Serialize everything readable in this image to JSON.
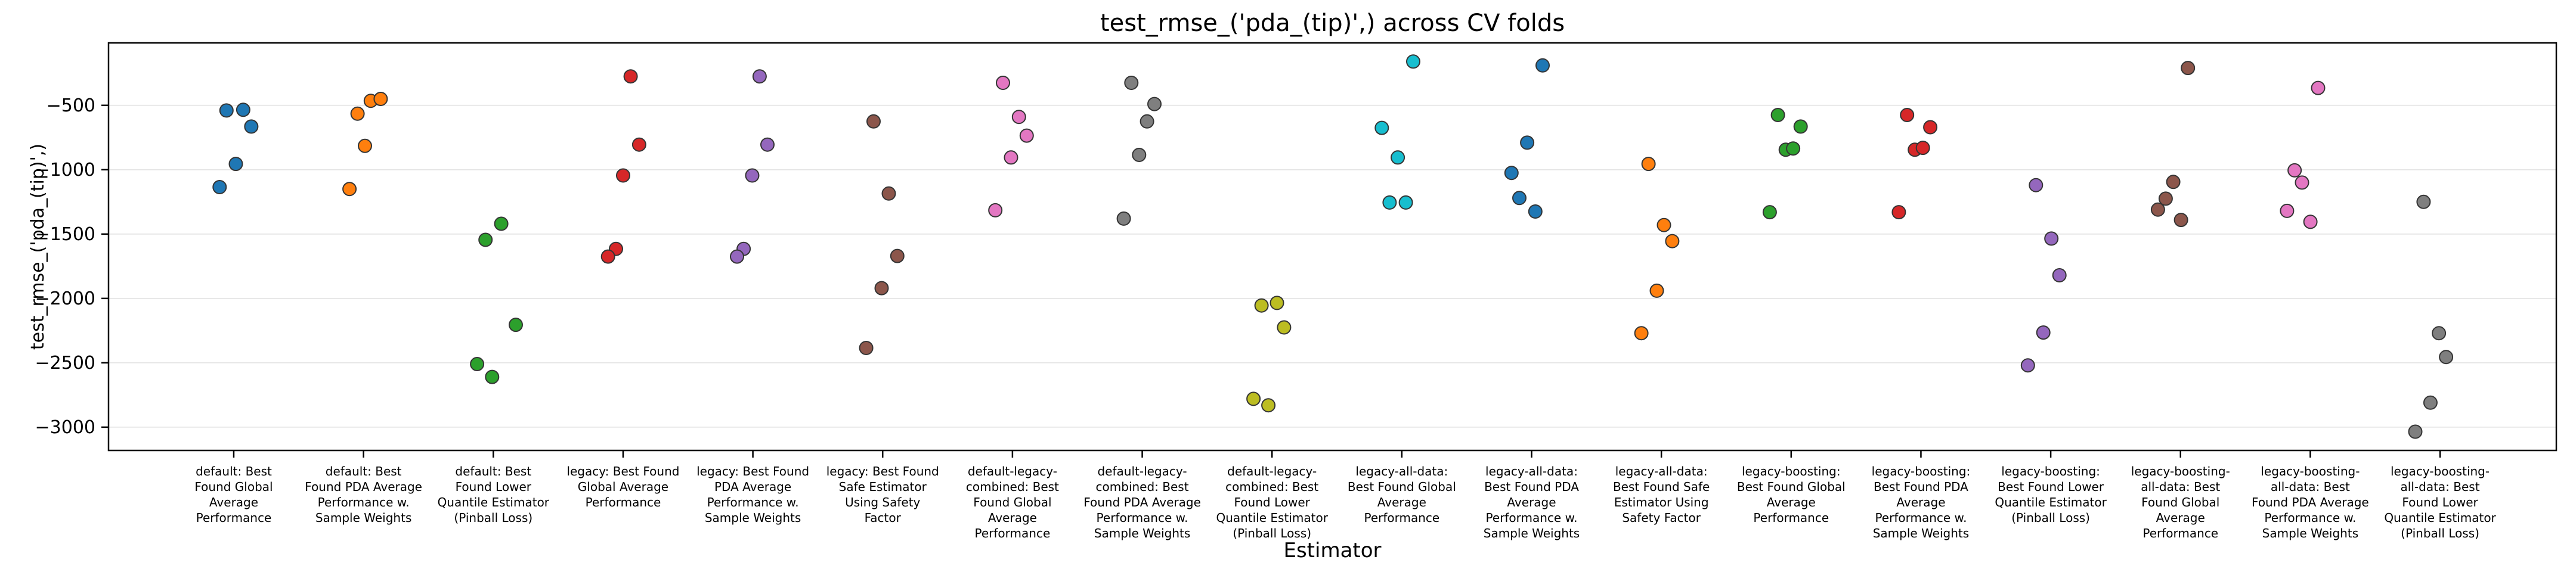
{
  "title": "test_rmse_('pda_(tip)',) across CV folds",
  "chart_data": {
    "type": "scatter",
    "subtype": "strip-plot",
    "title": "test_rmse_('pda_(tip)',) across CV folds",
    "xlabel": "Estimator",
    "ylabel": "test_rmse_('pda_(tip)',)",
    "ylim": [
      -3181,
      -15
    ],
    "grid": "horizontal",
    "legend": "none",
    "yticks": [
      {
        "label": "−500",
        "value": -500
      },
      {
        "label": "−1000",
        "value": -1000
      },
      {
        "label": "−1500",
        "value": -1500
      },
      {
        "label": "−2000",
        "value": -2000
      },
      {
        "label": "−2500",
        "value": -2500
      },
      {
        "label": "−3000",
        "value": -3000
      }
    ],
    "palette": {
      "blue": "#1f77b4",
      "orange": "#ff7f0e",
      "green": "#2ca02c",
      "red": "#d62728",
      "purple": "#9467bd",
      "brown": "#8c564b",
      "pink": "#e377c2",
      "gray": "#7f7f7f",
      "olive": "#bcbd22",
      "cyan": "#17becf"
    },
    "point_edge_color": "#343434",
    "groups": [
      {
        "estimator": "default: Best Found Global Average Performance",
        "lines": [
          "default: Best",
          "Found Global",
          "Average",
          "Performance"
        ],
        "color": "#1f77b4",
        "points": [
          {
            "dx": -0.056,
            "value": -540
          },
          {
            "dx": 0.073,
            "value": -535
          },
          {
            "dx": 0.135,
            "value": -665
          },
          {
            "dx": 0.016,
            "value": -955
          },
          {
            "dx": -0.109,
            "value": -1135
          }
        ]
      },
      {
        "estimator": "default: Best Found PDA Average Performance w. Sample Weights",
        "lines": [
          "default: Best",
          "Found PDA Average",
          "Performance w.",
          "Sample Weights"
        ],
        "color": "#ff7f0e",
        "points": [
          {
            "dx": 0.056,
            "value": -465
          },
          {
            "dx": 0.132,
            "value": -450
          },
          {
            "dx": -0.046,
            "value": -565
          },
          {
            "dx": 0.011,
            "value": -815
          },
          {
            "dx": -0.108,
            "value": -1150
          }
        ]
      },
      {
        "estimator": "default: Best Found Lower Quantile Estimator (Pinball Loss)",
        "lines": [
          "default: Best",
          "Found Lower",
          "Quantile Estimator",
          "(Pinball Loss)"
        ],
        "color": "#2ca02c",
        "points": [
          {
            "dx": 0.061,
            "value": -1420
          },
          {
            "dx": -0.06,
            "value": -1545
          },
          {
            "dx": 0.173,
            "value": -2205
          },
          {
            "dx": -0.125,
            "value": -2510
          },
          {
            "dx": -0.009,
            "value": -2610
          }
        ]
      },
      {
        "estimator": "legacy: Best Found Global Average Performance",
        "lines": [
          "legacy: Best Found",
          "Global Average",
          "Performance"
        ],
        "color": "#d62728",
        "points": [
          {
            "dx": 0.058,
            "value": -275
          },
          {
            "dx": 0.124,
            "value": -805
          },
          {
            "dx": 0.0,
            "value": -1045
          },
          {
            "dx": -0.055,
            "value": -1615
          },
          {
            "dx": -0.116,
            "value": -1675
          }
        ]
      },
      {
        "estimator": "legacy: Best Found PDA Average Performance w. Sample Weights",
        "lines": [
          "legacy: Best Found",
          "PDA Average",
          "Performance w.",
          "Sample Weights"
        ],
        "color": "#9467bd",
        "points": [
          {
            "dx": 0.052,
            "value": -275
          },
          {
            "dx": 0.112,
            "value": -805
          },
          {
            "dx": -0.005,
            "value": -1045
          },
          {
            "dx": -0.071,
            "value": -1615
          },
          {
            "dx": -0.122,
            "value": -1675
          }
        ]
      },
      {
        "estimator": "legacy: Best Found Safe Estimator Using Safety Factor",
        "lines": [
          "legacy: Best Found",
          "Safe Estimator",
          "Using Safety",
          "Factor"
        ],
        "color": "#8c564b",
        "points": [
          {
            "dx": -0.07,
            "value": -625
          },
          {
            "dx": 0.047,
            "value": -1185
          },
          {
            "dx": 0.113,
            "value": -1670
          },
          {
            "dx": -0.008,
            "value": -1920
          },
          {
            "dx": -0.127,
            "value": -2385
          }
        ]
      },
      {
        "estimator": "default-legacy-combined: Best Found Global Average Performance",
        "lines": [
          "default-legacy-",
          "combined: Best",
          "Found Global",
          "Average",
          "Performance"
        ],
        "color": "#e377c2",
        "points": [
          {
            "dx": -0.073,
            "value": -325
          },
          {
            "dx": 0.05,
            "value": -590
          },
          {
            "dx": 0.11,
            "value": -735
          },
          {
            "dx": -0.011,
            "value": -905
          },
          {
            "dx": -0.132,
            "value": -1315
          }
        ]
      },
      {
        "estimator": "default-legacy-combined: Best Found PDA Average Performance w. Sample Weights",
        "lines": [
          "default-legacy-",
          "combined: Best",
          "Found PDA Average",
          "Performance w.",
          "Sample Weights"
        ],
        "color": "#7f7f7f",
        "points": [
          {
            "dx": -0.084,
            "value": -325
          },
          {
            "dx": 0.094,
            "value": -490
          },
          {
            "dx": 0.037,
            "value": -625
          },
          {
            "dx": -0.024,
            "value": -885
          },
          {
            "dx": -0.142,
            "value": -1380
          }
        ]
      },
      {
        "estimator": "default-legacy-combined: Best Found Lower Quantile Estimator (Pinball Loss)",
        "lines": [
          "default-legacy-",
          "combined: Best",
          "Found Lower",
          "Quantile Estimator",
          "(Pinball Loss)"
        ],
        "color": "#bcbd22",
        "points": [
          {
            "dx": -0.081,
            "value": -2055
          },
          {
            "dx": 0.038,
            "value": -2035
          },
          {
            "dx": 0.093,
            "value": -2225
          },
          {
            "dx": -0.028,
            "value": -2830
          },
          {
            "dx": -0.143,
            "value": -2780
          }
        ]
      },
      {
        "estimator": "legacy-all-data: Best Found Global Average Performance",
        "lines": [
          "legacy-all-data:",
          "Best Found Global",
          "Average",
          "Performance"
        ],
        "color": "#17becf",
        "points": [
          {
            "dx": 0.088,
            "value": -160
          },
          {
            "dx": -0.154,
            "value": -675
          },
          {
            "dx": -0.031,
            "value": -905
          },
          {
            "dx": -0.094,
            "value": -1255
          },
          {
            "dx": 0.031,
            "value": -1255
          }
        ]
      },
      {
        "estimator": "legacy-all-data: Best Found PDA Average Performance w. Sample Weights",
        "lines": [
          "legacy-all-data:",
          "Best Found PDA",
          "Average",
          "Performance w.",
          "Sample Weights"
        ],
        "color": "#1f77b4",
        "points": [
          {
            "dx": 0.085,
            "value": -190
          },
          {
            "dx": -0.034,
            "value": -790
          },
          {
            "dx": -0.155,
            "value": -1025
          },
          {
            "dx": -0.094,
            "value": -1220
          },
          {
            "dx": 0.029,
            "value": -1325
          }
        ]
      },
      {
        "estimator": "legacy-all-data: Best Found Safe Estimator Using Safety Factor",
        "lines": [
          "legacy-all-data:",
          "Best Found Safe",
          "Estimator Using",
          "Safety Factor"
        ],
        "color": "#ff7f0e",
        "points": [
          {
            "dx": -0.099,
            "value": -955
          },
          {
            "dx": 0.02,
            "value": -1430
          },
          {
            "dx": 0.084,
            "value": -1555
          },
          {
            "dx": -0.035,
            "value": -1940
          },
          {
            "dx": -0.154,
            "value": -2270
          }
        ]
      },
      {
        "estimator": "legacy-boosting: Best Found Global Average Performance",
        "lines": [
          "legacy-boosting:",
          "Best Found Global",
          "Average",
          "Performance"
        ],
        "color": "#2ca02c",
        "points": [
          {
            "dx": -0.102,
            "value": -575
          },
          {
            "dx": 0.073,
            "value": -665
          },
          {
            "dx": -0.042,
            "value": -845
          },
          {
            "dx": 0.015,
            "value": -835
          },
          {
            "dx": -0.165,
            "value": -1330
          }
        ]
      },
      {
        "estimator": "legacy-boosting: Best Found PDA Average Performance w. Sample Weights",
        "lines": [
          "legacy-boosting:",
          "Best Found PDA",
          "Average",
          "Performance w.",
          "Sample Weights"
        ],
        "color": "#d62728",
        "points": [
          {
            "dx": -0.107,
            "value": -575
          },
          {
            "dx": 0.072,
            "value": -670
          },
          {
            "dx": -0.047,
            "value": -845
          },
          {
            "dx": 0.015,
            "value": -830
          },
          {
            "dx": -0.17,
            "value": -1330
          }
        ]
      },
      {
        "estimator": "legacy-boosting: Best Found Lower Quantile Estimator (Pinball Loss)",
        "lines": [
          "legacy-boosting:",
          "Best Found Lower",
          "Quantile Estimator",
          "(Pinball Loss)"
        ],
        "color": "#9467bd",
        "points": [
          {
            "dx": -0.114,
            "value": -1120
          },
          {
            "dx": 0.005,
            "value": -1535
          },
          {
            "dx": 0.067,
            "value": -1820
          },
          {
            "dx": -0.057,
            "value": -2265
          },
          {
            "dx": -0.176,
            "value": -2520
          }
        ]
      },
      {
        "estimator": "legacy-boosting-all-data: Best Found Global Average Performance",
        "lines": [
          "legacy-boosting-",
          "all-data: Best",
          "Found Global",
          "Average",
          "Performance"
        ],
        "color": "#8c564b",
        "points": [
          {
            "dx": 0.057,
            "value": -210
          },
          {
            "dx": -0.056,
            "value": -1095
          },
          {
            "dx": -0.114,
            "value": -1225
          },
          {
            "dx": -0.174,
            "value": -1310
          },
          {
            "dx": 0.004,
            "value": -1390
          }
        ]
      },
      {
        "estimator": "legacy-boosting-all-data: Best Found PDA Average Performance w. Sample Weights",
        "lines": [
          "legacy-boosting-",
          "all-data: Best",
          "Found PDA Average",
          "Performance w.",
          "Sample Weights"
        ],
        "color": "#e377c2",
        "points": [
          {
            "dx": 0.06,
            "value": -365
          },
          {
            "dx": -0.121,
            "value": -1005
          },
          {
            "dx": -0.064,
            "value": -1100
          },
          {
            "dx": -0.179,
            "value": -1320
          },
          {
            "dx": 0.001,
            "value": -1405
          }
        ]
      },
      {
        "estimator": "legacy-boosting-all-data: Best Found Lower Quantile Estimator (Pinball Loss)",
        "lines": [
          "legacy-boosting-",
          "all-data: Best",
          "Found Lower",
          "Quantile Estimator",
          "(Pinball Loss)"
        ],
        "color": "#7f7f7f",
        "points": [
          {
            "dx": -0.127,
            "value": -1250
          },
          {
            "dx": -0.009,
            "value": -2270
          },
          {
            "dx": 0.046,
            "value": -2455
          },
          {
            "dx": -0.074,
            "value": -2810
          },
          {
            "dx": -0.191,
            "value": -3035
          }
        ]
      }
    ]
  }
}
